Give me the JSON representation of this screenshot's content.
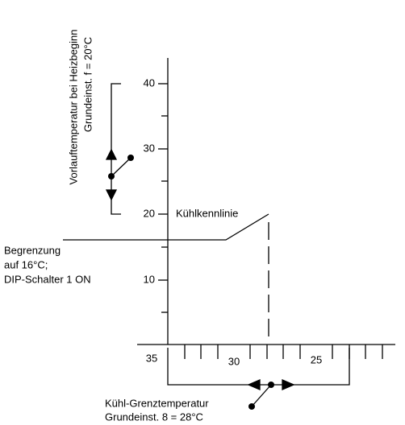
{
  "y_axis": {
    "label": "Vorlauftemperatur bei Heizbeginn",
    "setting": "Grundeinst. f = 20°C",
    "ticks": [
      "40",
      "30",
      "20",
      "10"
    ]
  },
  "x_axis": {
    "ticks": [
      "35",
      "30",
      "25"
    ],
    "label": "Kühl-Grenztemperatur",
    "setting": "Grundeinst. 8 = 28°C"
  },
  "curve_label": "Kühlkennlinie",
  "limit_note": [
    "Begrenzung",
    "auf 16°C;",
    "DIP-Schalter 1 ON"
  ]
}
